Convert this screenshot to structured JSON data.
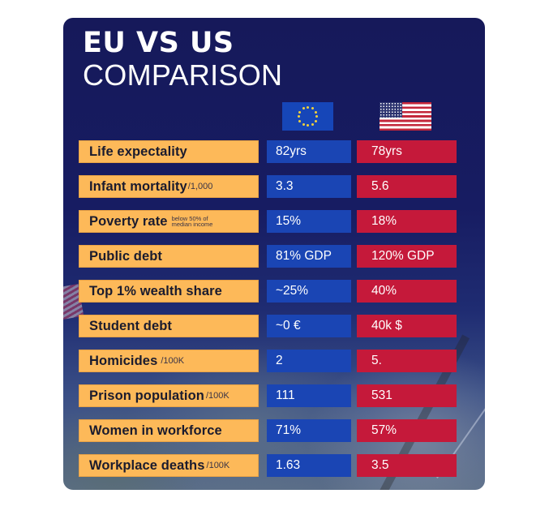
{
  "title": {
    "line1": "EU VS US",
    "line2": "COMPARISON"
  },
  "columns": {
    "eu": {
      "name": "EU",
      "icon": "eu-flag-icon",
      "color": "#1a45b4"
    },
    "us": {
      "name": "US",
      "icon": "us-flag-icon",
      "color": "#c5193a"
    }
  },
  "label_color": "#fdb959",
  "rows": [
    {
      "label": "Life expectality",
      "unit": "",
      "note_line1": "",
      "note_line2": "",
      "eu": "82yrs",
      "us": "78yrs"
    },
    {
      "label": "Infant mortality",
      "unit": "/1,000",
      "note_line1": "",
      "note_line2": "",
      "eu": "3.3",
      "us": "5.6"
    },
    {
      "label": "Poverty rate",
      "unit": "",
      "note_line1": "below 50% of",
      "note_line2": "median income",
      "eu": "15%",
      "us": "18%"
    },
    {
      "label": "Public debt",
      "unit": "",
      "note_line1": "",
      "note_line2": "",
      "eu": "81% GDP",
      "us": "120% GDP"
    },
    {
      "label": "Top 1% wealth share",
      "unit": "",
      "note_line1": "",
      "note_line2": "",
      "eu": "~25%",
      "us": "40%"
    },
    {
      "label": "Student debt",
      "unit": "",
      "note_line1": "",
      "note_line2": "",
      "eu": "~0 €",
      "us": "40k $"
    },
    {
      "label": "Homicides",
      "unit": "/100K",
      "note_line1": "",
      "note_line2": "",
      "eu": "2",
      "us": "5."
    },
    {
      "label": "Prison population",
      "unit": "/100K",
      "note_line1": "",
      "note_line2": "",
      "eu": "111",
      "us": "531"
    },
    {
      "label": "Women in workforce",
      "unit": "",
      "note_line1": "",
      "note_line2": "",
      "eu": "71%",
      "us": "57%"
    },
    {
      "label": "Workplace deaths",
      "unit": "/100K",
      "note_line1": "",
      "note_line2": "",
      "eu": "1.63",
      "us": "3.5"
    }
  ]
}
